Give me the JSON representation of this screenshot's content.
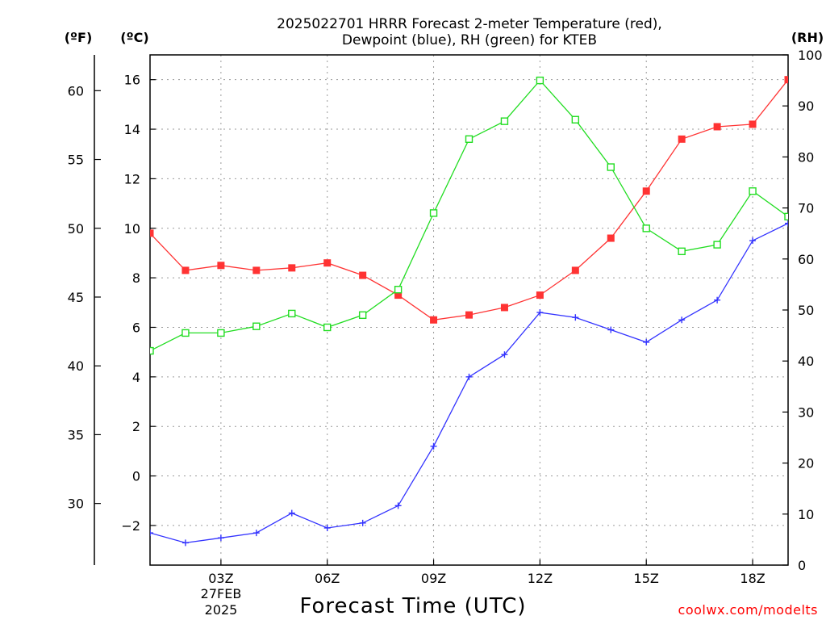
{
  "title_line1": "2025022701 HRRR Forecast 2-meter Temperature (red),",
  "title_line2": "Dewpoint (blue), RH (green) for KTEB",
  "unit_f": "(ºF)",
  "unit_c": "(ºC)",
  "unit_rh": "(RH)",
  "x_title": "Forecast Time (UTC)",
  "credit": "coolwx.com/modelts",
  "date_line1": "27FEB",
  "date_line2": "2025",
  "chart_data": {
    "type": "line",
    "x_label": "Forecast Time (UTC)",
    "x": [
      1,
      2,
      3,
      4,
      5,
      6,
      7,
      8,
      9,
      10,
      11,
      12,
      13,
      14,
      15,
      16,
      17,
      18,
      19
    ],
    "x_range": [
      1,
      19
    ],
    "x_ticks": [
      {
        "x": 3,
        "label": "03Z"
      },
      {
        "x": 6,
        "label": "06Z"
      },
      {
        "x": 9,
        "label": "09Z"
      },
      {
        "x": 12,
        "label": "12Z"
      },
      {
        "x": 15,
        "label": "15Z"
      },
      {
        "x": 18,
        "label": "18Z"
      }
    ],
    "y_left_c_range": [
      -3.6,
      17.0
    ],
    "y_left_c_ticks": [
      -2,
      0,
      2,
      4,
      6,
      8,
      10,
      12,
      14,
      16
    ],
    "y_far_left_f_ticks": [
      30,
      35,
      40,
      45,
      50,
      55,
      60
    ],
    "y_right_rh_range": [
      0,
      100
    ],
    "y_right_rh_ticks": [
      0,
      10,
      20,
      30,
      40,
      50,
      60,
      70,
      80,
      90,
      100
    ],
    "grid": true,
    "series": [
      {
        "name": "Temperature",
        "color": "#ff3333",
        "marker": "filled-square",
        "axis": "C",
        "values": [
          9.8,
          8.3,
          8.5,
          8.3,
          8.4,
          8.6,
          8.1,
          7.3,
          6.3,
          6.5,
          6.8,
          7.3,
          8.3,
          9.6,
          11.5,
          13.6,
          14.1,
          14.2,
          16.0
        ]
      },
      {
        "name": "Dewpoint",
        "color": "#3333ff",
        "marker": "plus",
        "axis": "C",
        "values": [
          -2.3,
          -2.7,
          -2.5,
          -2.3,
          -1.5,
          -2.1,
          -1.9,
          -1.2,
          1.2,
          4.0,
          4.9,
          6.6,
          6.4,
          5.9,
          5.4,
          6.3,
          7.1,
          9.5,
          10.2
        ]
      },
      {
        "name": "RH",
        "color": "#22dd22",
        "marker": "open-square",
        "axis": "RH",
        "values": [
          42.0,
          45.5,
          45.5,
          46.8,
          49.3,
          46.6,
          49.0,
          54.0,
          69.0,
          83.5,
          87.0,
          95.0,
          87.3,
          78.0,
          66.0,
          61.5,
          62.8,
          73.3,
          68.3
        ]
      }
    ]
  }
}
